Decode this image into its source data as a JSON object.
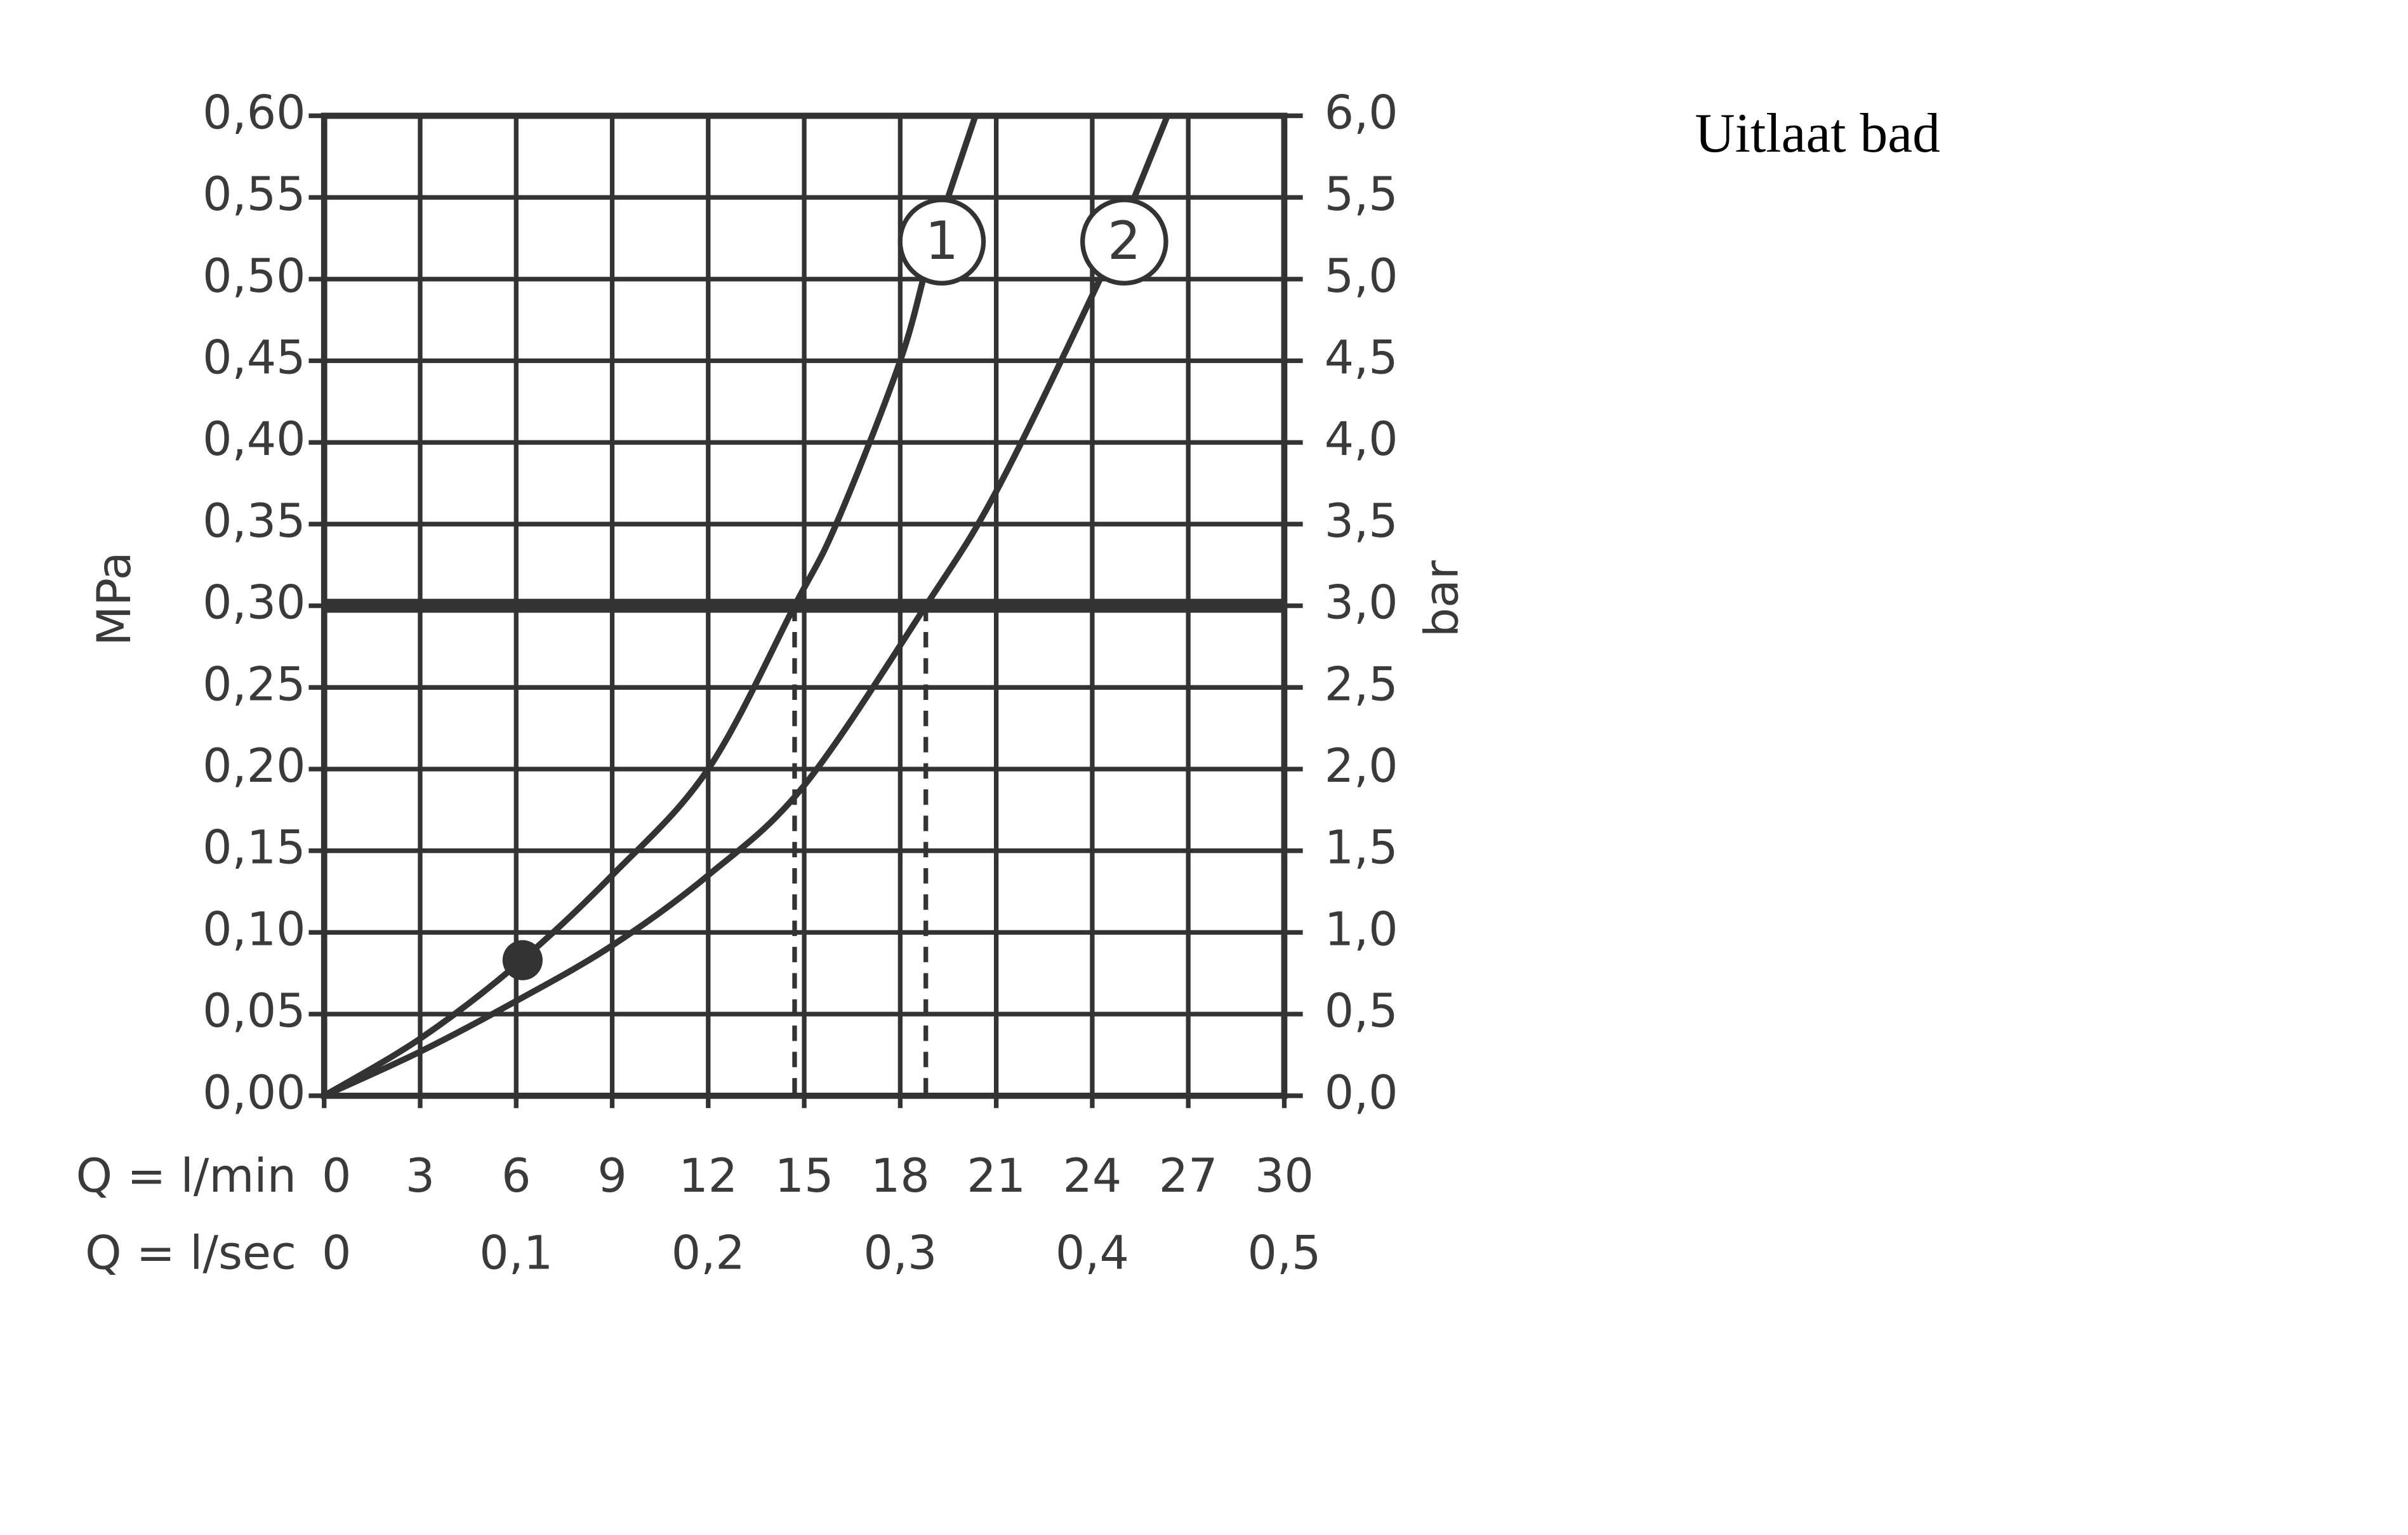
{
  "chart_data": {
    "type": "line",
    "title": "Uitlaat bad",
    "ylabel": "MPa",
    "y2label": "bar",
    "xlabel": "Q = l/min",
    "x2label": "Q = l/sec",
    "xlim": [
      0,
      30
    ],
    "xticks": [
      0,
      3,
      6,
      9,
      12,
      15,
      18,
      21,
      24,
      27,
      30
    ],
    "x2lim": [
      0,
      0.5
    ],
    "x2ticks": [
      0,
      {
        "value": 0.1,
        "label": "0,1"
      },
      {
        "value": 0.2,
        "label": "0,2"
      },
      {
        "value": 0.3,
        "label": "0,3"
      },
      {
        "value": 0.4,
        "label": "0,4"
      },
      {
        "value": 0.5,
        "label": "0,5"
      }
    ],
    "ylim": [
      0,
      0.6
    ],
    "yticks": [
      {
        "value": 0,
        "label": "0,00"
      },
      {
        "value": 0.05,
        "label": "0,05"
      },
      {
        "value": 0.1,
        "label": "0,10"
      },
      {
        "value": 0.15,
        "label": "0,15"
      },
      {
        "value": 0.2,
        "label": "0,20"
      },
      {
        "value": 0.25,
        "label": "0,25"
      },
      {
        "value": 0.3,
        "label": "0,30"
      },
      {
        "value": 0.35,
        "label": "0,35"
      },
      {
        "value": 0.4,
        "label": "0,40"
      },
      {
        "value": 0.45,
        "label": "0,45"
      },
      {
        "value": 0.5,
        "label": "0,50"
      },
      {
        "value": 0.55,
        "label": "0,55"
      },
      {
        "value": 0.6,
        "label": "0,60"
      }
    ],
    "y2lim": [
      0,
      6
    ],
    "y2ticks": [
      {
        "value": 0,
        "label": "0,0"
      },
      {
        "value": 0.5,
        "label": "0,5"
      },
      {
        "value": 1,
        "label": "1,0"
      },
      {
        "value": 1.5,
        "label": "1,5"
      },
      {
        "value": 2,
        "label": "2,0"
      },
      {
        "value": 2.5,
        "label": "2,5"
      },
      {
        "value": 3,
        "label": "3,0"
      },
      {
        "value": 3.5,
        "label": "3,5"
      },
      {
        "value": 4,
        "label": "4,0"
      },
      {
        "value": 4.5,
        "label": "4,5"
      },
      {
        "value": 5,
        "label": "5,0"
      },
      {
        "value": 5.5,
        "label": "5,5"
      },
      {
        "value": 6,
        "label": "6,0"
      }
    ],
    "grid": true,
    "color": "#333333",
    "series": [
      {
        "name": "1",
        "x": [
          0,
          3,
          6,
          9,
          12,
          14.7,
          16,
          18,
          19,
          20.35
        ],
        "values": [
          0,
          0.035,
          0.08,
          0.135,
          0.2,
          0.3,
          0.35,
          0.45,
          0.52,
          0.6
        ]
      },
      {
        "name": "2",
        "x": [
          0,
          3,
          6,
          9,
          12,
          15,
          18.8,
          21,
          24,
          25,
          26.35
        ],
        "values": [
          0,
          0.027,
          0.058,
          0.092,
          0.135,
          0.19,
          0.3,
          0.37,
          0.49,
          0.535,
          0.6
        ]
      }
    ],
    "annotations": [
      {
        "text": "1",
        "x": 19.3,
        "y": 0.523
      },
      {
        "text": "2",
        "x": 25.0,
        "y": 0.523
      }
    ],
    "hlines": [
      0.3
    ],
    "vlines": [
      {
        "x": 14.7,
        "y": 0.3
      },
      {
        "x": 18.8,
        "y": 0.3
      }
    ],
    "points": [
      {
        "x": 6.2,
        "y": 0.083
      }
    ]
  }
}
